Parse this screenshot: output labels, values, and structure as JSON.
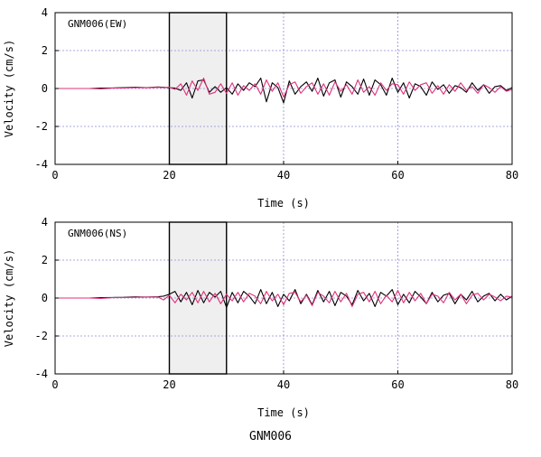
{
  "caption": "GNM006",
  "colors": {
    "trace_a": "#000000",
    "trace_b": "#e0307a",
    "grid": "#8c8cd8",
    "window_fill": "#efefef"
  },
  "chart_data": [
    {
      "type": "line",
      "panel_label": "GNM006(EW)",
      "xlabel": "Time (s)",
      "ylabel": "Velocity (cm/s)",
      "xlim": [
        0,
        80
      ],
      "ylim": [
        -4,
        4
      ],
      "xticks": [
        "0",
        "20",
        "40",
        "60",
        "80"
      ],
      "yticks": [
        "4",
        "2",
        "0",
        "-2",
        "-4"
      ],
      "grid": true,
      "shaded_window": [
        20,
        30
      ],
      "x": [
        0,
        2,
        4,
        6,
        8,
        10,
        12,
        14,
        16,
        18,
        19,
        20,
        21,
        22,
        23,
        24,
        25,
        26,
        27,
        28,
        29,
        30,
        31,
        32,
        33,
        34,
        35,
        36,
        37,
        38,
        39,
        40,
        41,
        42,
        43,
        44,
        45,
        46,
        47,
        48,
        49,
        50,
        51,
        52,
        53,
        54,
        55,
        56,
        57,
        58,
        59,
        60,
        61,
        62,
        63,
        64,
        65,
        66,
        67,
        68,
        69,
        70,
        71,
        72,
        73,
        74,
        75,
        76,
        77,
        78,
        79,
        80
      ],
      "series": [
        {
          "values": [
            0,
            0,
            0,
            0,
            0.02,
            0.03,
            0.05,
            0.07,
            0.05,
            0.08,
            0.06,
            0.05,
            0.02,
            -0.1,
            0.3,
            -0.5,
            0.4,
            0.45,
            -0.2,
            0.1,
            -0.2,
            0.05,
            -0.3,
            0.25,
            -0.1,
            0.3,
            0.1,
            0.55,
            -0.7,
            0.3,
            0.05,
            -0.75,
            0.4,
            -0.3,
            0.1,
            0.35,
            -0.15,
            0.55,
            -0.4,
            0.3,
            0.45,
            -0.45,
            0.35,
            0.1,
            -0.3,
            0.5,
            -0.35,
            0.45,
            0.2,
            -0.35,
            0.55,
            -0.2,
            0.3,
            -0.5,
            0.25,
            0.1,
            -0.35,
            0.35,
            -0.05,
            0.2,
            -0.25,
            0.15,
            0.05,
            -0.2,
            0.3,
            -0.1,
            0.2,
            -0.25,
            0.1,
            0.15,
            -0.1,
            0.05
          ]
        },
        {
          "values": [
            0,
            0,
            0,
            0,
            -0.02,
            0.02,
            0.03,
            0.05,
            0.04,
            0.06,
            0.05,
            0.07,
            -0.05,
            0.25,
            -0.35,
            0.4,
            -0.1,
            0.55,
            -0.3,
            -0.2,
            0.25,
            -0.25,
            0.3,
            -0.35,
            0.15,
            -0.1,
            0.25,
            -0.3,
            0.45,
            -0.15,
            0.3,
            -0.45,
            0.2,
            0.35,
            -0.25,
            0.1,
            0.3,
            -0.3,
            0.25,
            -0.35,
            0.35,
            -0.15,
            0.2,
            -0.3,
            0.45,
            -0.2,
            0.1,
            -0.35,
            0.3,
            -0.1,
            0.25,
            0.2,
            -0.3,
            0.35,
            -0.1,
            0.2,
            0.3,
            -0.25,
            0.15,
            -0.3,
            0.2,
            -0.15,
            0.3,
            -0.1,
            0.1,
            -0.25,
            0.2,
            0.05,
            -0.2,
            0.1,
            -0.15,
            -0.05
          ]
        }
      ]
    },
    {
      "type": "line",
      "panel_label": "GNM006(NS)",
      "xlabel": "Time (s)",
      "ylabel": "Velocity (cm/s)",
      "xlim": [
        0,
        80
      ],
      "ylim": [
        -4,
        4
      ],
      "xticks": [
        "0",
        "20",
        "40",
        "60",
        "80"
      ],
      "yticks": [
        "4",
        "2",
        "0",
        "-2",
        "-4"
      ],
      "grid": true,
      "shaded_window": [
        20,
        30
      ],
      "x": [
        0,
        2,
        4,
        6,
        8,
        10,
        12,
        14,
        16,
        18,
        19,
        20,
        21,
        22,
        23,
        24,
        25,
        26,
        27,
        28,
        29,
        30,
        31,
        32,
        33,
        34,
        35,
        36,
        37,
        38,
        39,
        40,
        41,
        42,
        43,
        44,
        45,
        46,
        47,
        48,
        49,
        50,
        51,
        52,
        53,
        54,
        55,
        56,
        57,
        58,
        59,
        60,
        61,
        62,
        63,
        64,
        65,
        66,
        67,
        68,
        69,
        70,
        71,
        72,
        73,
        74,
        75,
        76,
        77,
        78,
        79,
        80
      ],
      "series": [
        {
          "values": [
            0,
            0,
            0,
            0,
            0.02,
            0.03,
            0.04,
            0.06,
            0.05,
            0.07,
            0.1,
            0.2,
            0.35,
            -0.2,
            0.3,
            -0.35,
            0.4,
            -0.25,
            0.3,
            0.05,
            0.35,
            -0.5,
            0.3,
            -0.25,
            0.35,
            0.1,
            -0.3,
            0.45,
            -0.3,
            0.3,
            -0.45,
            0.2,
            -0.15,
            0.45,
            -0.3,
            0.2,
            -0.35,
            0.4,
            -0.2,
            0.35,
            -0.4,
            0.3,
            0.1,
            -0.35,
            0.4,
            -0.15,
            0.25,
            -0.45,
            0.3,
            0.1,
            0.45,
            -0.35,
            0.2,
            -0.25,
            0.35,
            0.05,
            -0.3,
            0.3,
            -0.2,
            0.15,
            0.25,
            -0.3,
            0.2,
            -0.1,
            0.35,
            -0.2,
            0.1,
            0.25,
            -0.15,
            0.2,
            -0.1,
            0.1
          ]
        },
        {
          "values": [
            0,
            0,
            0,
            0,
            -0.02,
            0.02,
            0.03,
            0.04,
            0.05,
            0.05,
            -0.1,
            0.15,
            -0.25,
            0.2,
            -0.1,
            0.3,
            -0.25,
            0.35,
            -0.2,
            0.25,
            -0.3,
            0.2,
            -0.15,
            0.3,
            -0.2,
            0.25,
            0.1,
            -0.3,
            0.35,
            -0.15,
            0.2,
            -0.35,
            0.25,
            0.3,
            -0.2,
            0.15,
            -0.4,
            0.3,
            0.1,
            -0.25,
            0.35,
            -0.2,
            0.25,
            -0.45,
            0.2,
            0.3,
            -0.2,
            0.35,
            -0.3,
            0.15,
            -0.2,
            0.4,
            -0.25,
            0.3,
            -0.15,
            0.25,
            -0.3,
            0.2,
            0.1,
            -0.25,
            0.3,
            -0.1,
            0.2,
            -0.3,
            0.15,
            0.25,
            -0.1,
            0.2,
            0.05,
            -0.15,
            0.1,
            0.05
          ]
        }
      ]
    }
  ]
}
